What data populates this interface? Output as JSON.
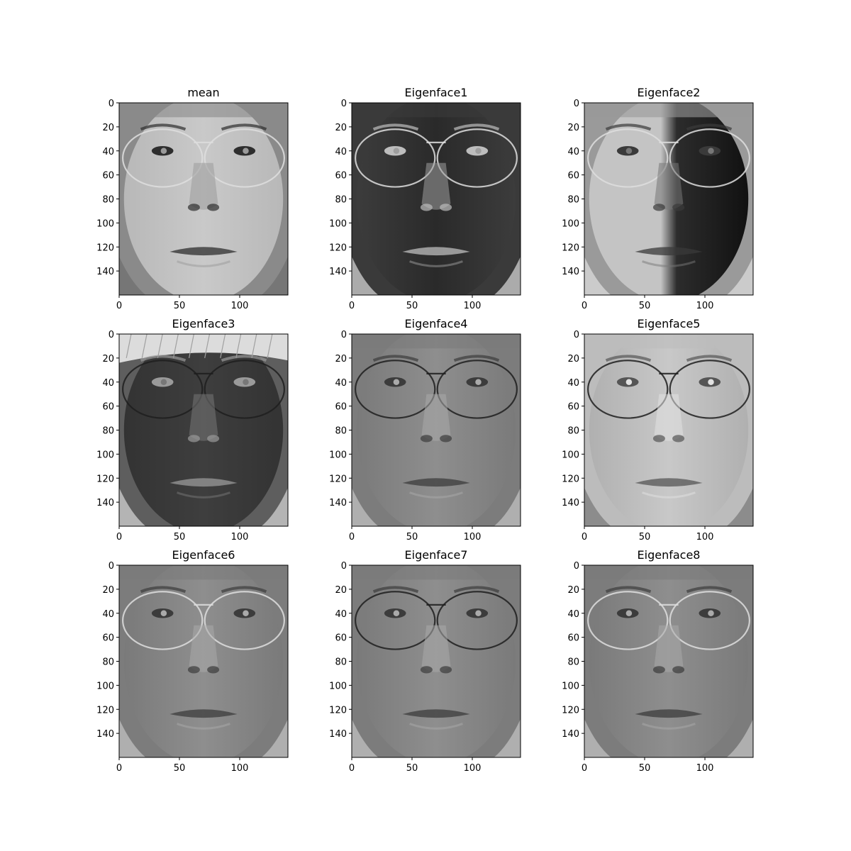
{
  "figure": {
    "panels": [
      {
        "title": "mean",
        "mode": "mean",
        "glasses": "light",
        "hair": false
      },
      {
        "title": "Eigenface1",
        "mode": "dark",
        "glasses": "light",
        "hair": false
      },
      {
        "title": "Eigenface2",
        "mode": "split",
        "glasses": "light",
        "hair": false
      },
      {
        "title": "Eigenface3",
        "mode": "darkhair",
        "glasses": "dark",
        "hair": true
      },
      {
        "title": "Eigenface4",
        "mode": "grey",
        "glasses": "dark",
        "hair": false
      },
      {
        "title": "Eigenface5",
        "mode": "light",
        "glasses": "dark",
        "hair": false
      },
      {
        "title": "Eigenface6",
        "mode": "grey",
        "glasses": "light",
        "hair": false
      },
      {
        "title": "Eigenface7",
        "mode": "grey",
        "glasses": "dark",
        "hair": false
      },
      {
        "title": "Eigenface8",
        "mode": "grey",
        "glasses": "light",
        "hair": false
      }
    ],
    "image_width": 140,
    "image_height": 160,
    "x_ticks": [
      0,
      50,
      100
    ],
    "y_ticks": [
      0,
      20,
      40,
      60,
      80,
      100,
      120,
      140
    ]
  }
}
